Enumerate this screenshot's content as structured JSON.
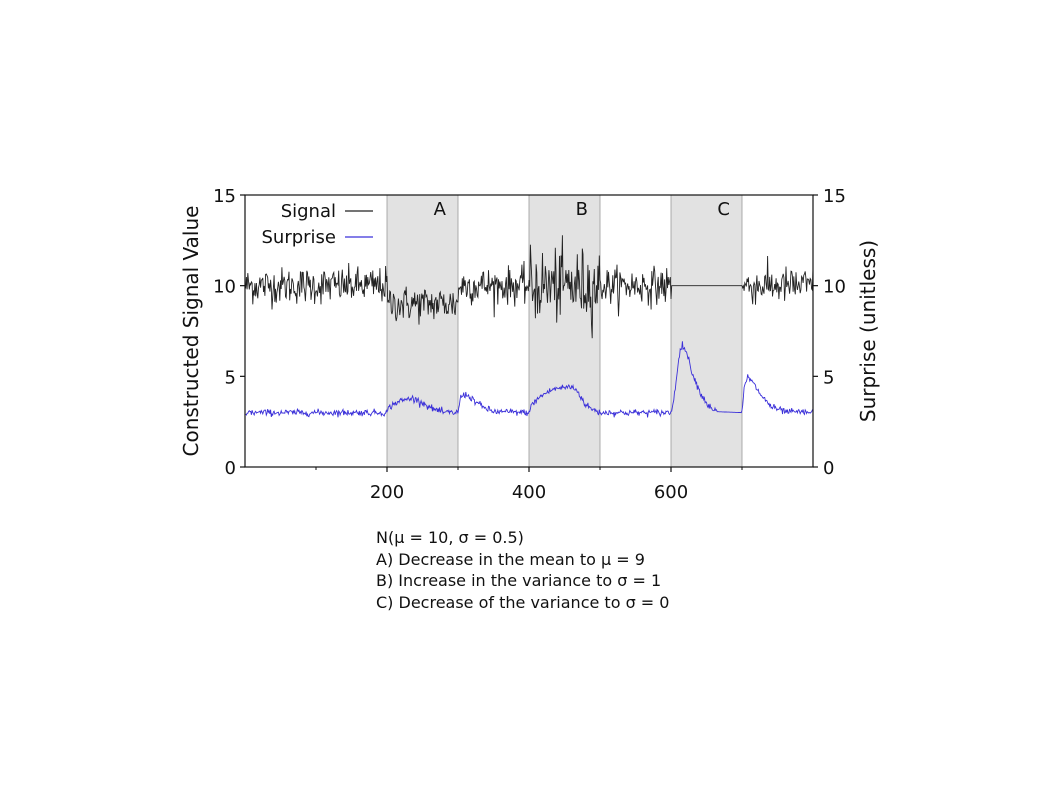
{
  "chart_data": {
    "type": "line",
    "xlabel": "",
    "ylabel": "Constructed Signal Value",
    "y2label": "Surprise (unitless)",
    "xlim": [
      0,
      800
    ],
    "ylim": [
      0,
      15
    ],
    "y2lim": [
      0,
      15
    ],
    "x_ticks": [
      200,
      400,
      600
    ],
    "y_ticks": [
      0,
      5,
      10,
      15
    ],
    "y2_ticks": [
      0,
      5,
      10,
      15
    ],
    "grid": false,
    "legend": {
      "position": "top-left",
      "entries": [
        "Signal",
        "Surprise"
      ]
    },
    "shaded_regions": [
      {
        "label": "A",
        "x0": 200,
        "x1": 300
      },
      {
        "label": "B",
        "x0": 400,
        "x1": 500
      },
      {
        "label": "C",
        "x0": 600,
        "x1": 700
      }
    ],
    "series": [
      {
        "name": "Signal",
        "color": "#222222",
        "segments": [
          {
            "x0": 0,
            "x1": 200,
            "mean": 10,
            "sd": 0.5
          },
          {
            "x0": 200,
            "x1": 300,
            "mean": 9,
            "sd": 0.5
          },
          {
            "x0": 300,
            "x1": 400,
            "mean": 10,
            "sd": 0.5
          },
          {
            "x0": 400,
            "x1": 500,
            "mean": 10,
            "sd": 1
          },
          {
            "x0": 500,
            "x1": 600,
            "mean": 10,
            "sd": 0.5
          },
          {
            "x0": 600,
            "x1": 700,
            "mean": 10,
            "sd": 0
          },
          {
            "x0": 700,
            "x1": 800,
            "mean": 10,
            "sd": 0.5
          }
        ]
      },
      {
        "name": "Surprise",
        "color": "#3b30d9",
        "profile": [
          [
            0,
            3.0
          ],
          [
            200,
            3.0
          ],
          [
            203,
            3.3
          ],
          [
            215,
            3.6
          ],
          [
            235,
            3.8
          ],
          [
            248,
            3.6
          ],
          [
            262,
            3.25
          ],
          [
            280,
            3.0
          ],
          [
            300,
            3.0
          ],
          [
            304,
            3.9
          ],
          [
            312,
            4.0
          ],
          [
            322,
            3.7
          ],
          [
            335,
            3.3
          ],
          [
            350,
            3.05
          ],
          [
            400,
            3.0
          ],
          [
            405,
            3.5
          ],
          [
            420,
            4.0
          ],
          [
            435,
            4.3
          ],
          [
            450,
            4.4
          ],
          [
            462,
            4.4
          ],
          [
            470,
            4.1
          ],
          [
            478,
            3.5
          ],
          [
            488,
            3.2
          ],
          [
            500,
            3.0
          ],
          [
            600,
            3.0
          ],
          [
            604,
            3.7
          ],
          [
            610,
            5.8
          ],
          [
            616,
            6.8
          ],
          [
            622,
            6.3
          ],
          [
            630,
            5.2
          ],
          [
            640,
            4.2
          ],
          [
            652,
            3.4
          ],
          [
            665,
            3.05
          ],
          [
            700,
            3.0
          ],
          [
            703,
            4.3
          ],
          [
            708,
            5.0
          ],
          [
            716,
            4.6
          ],
          [
            728,
            3.9
          ],
          [
            742,
            3.3
          ],
          [
            760,
            3.05
          ],
          [
            800,
            3.0
          ]
        ]
      }
    ]
  },
  "notes": {
    "line0": "N(μ = 10, σ = 0.5)",
    "line1": "A) Decrease in the mean to μ = 9",
    "line2": "B) Increase in the variance to σ = 1",
    "line3": "C) Decrease of the variance to σ = 0"
  }
}
